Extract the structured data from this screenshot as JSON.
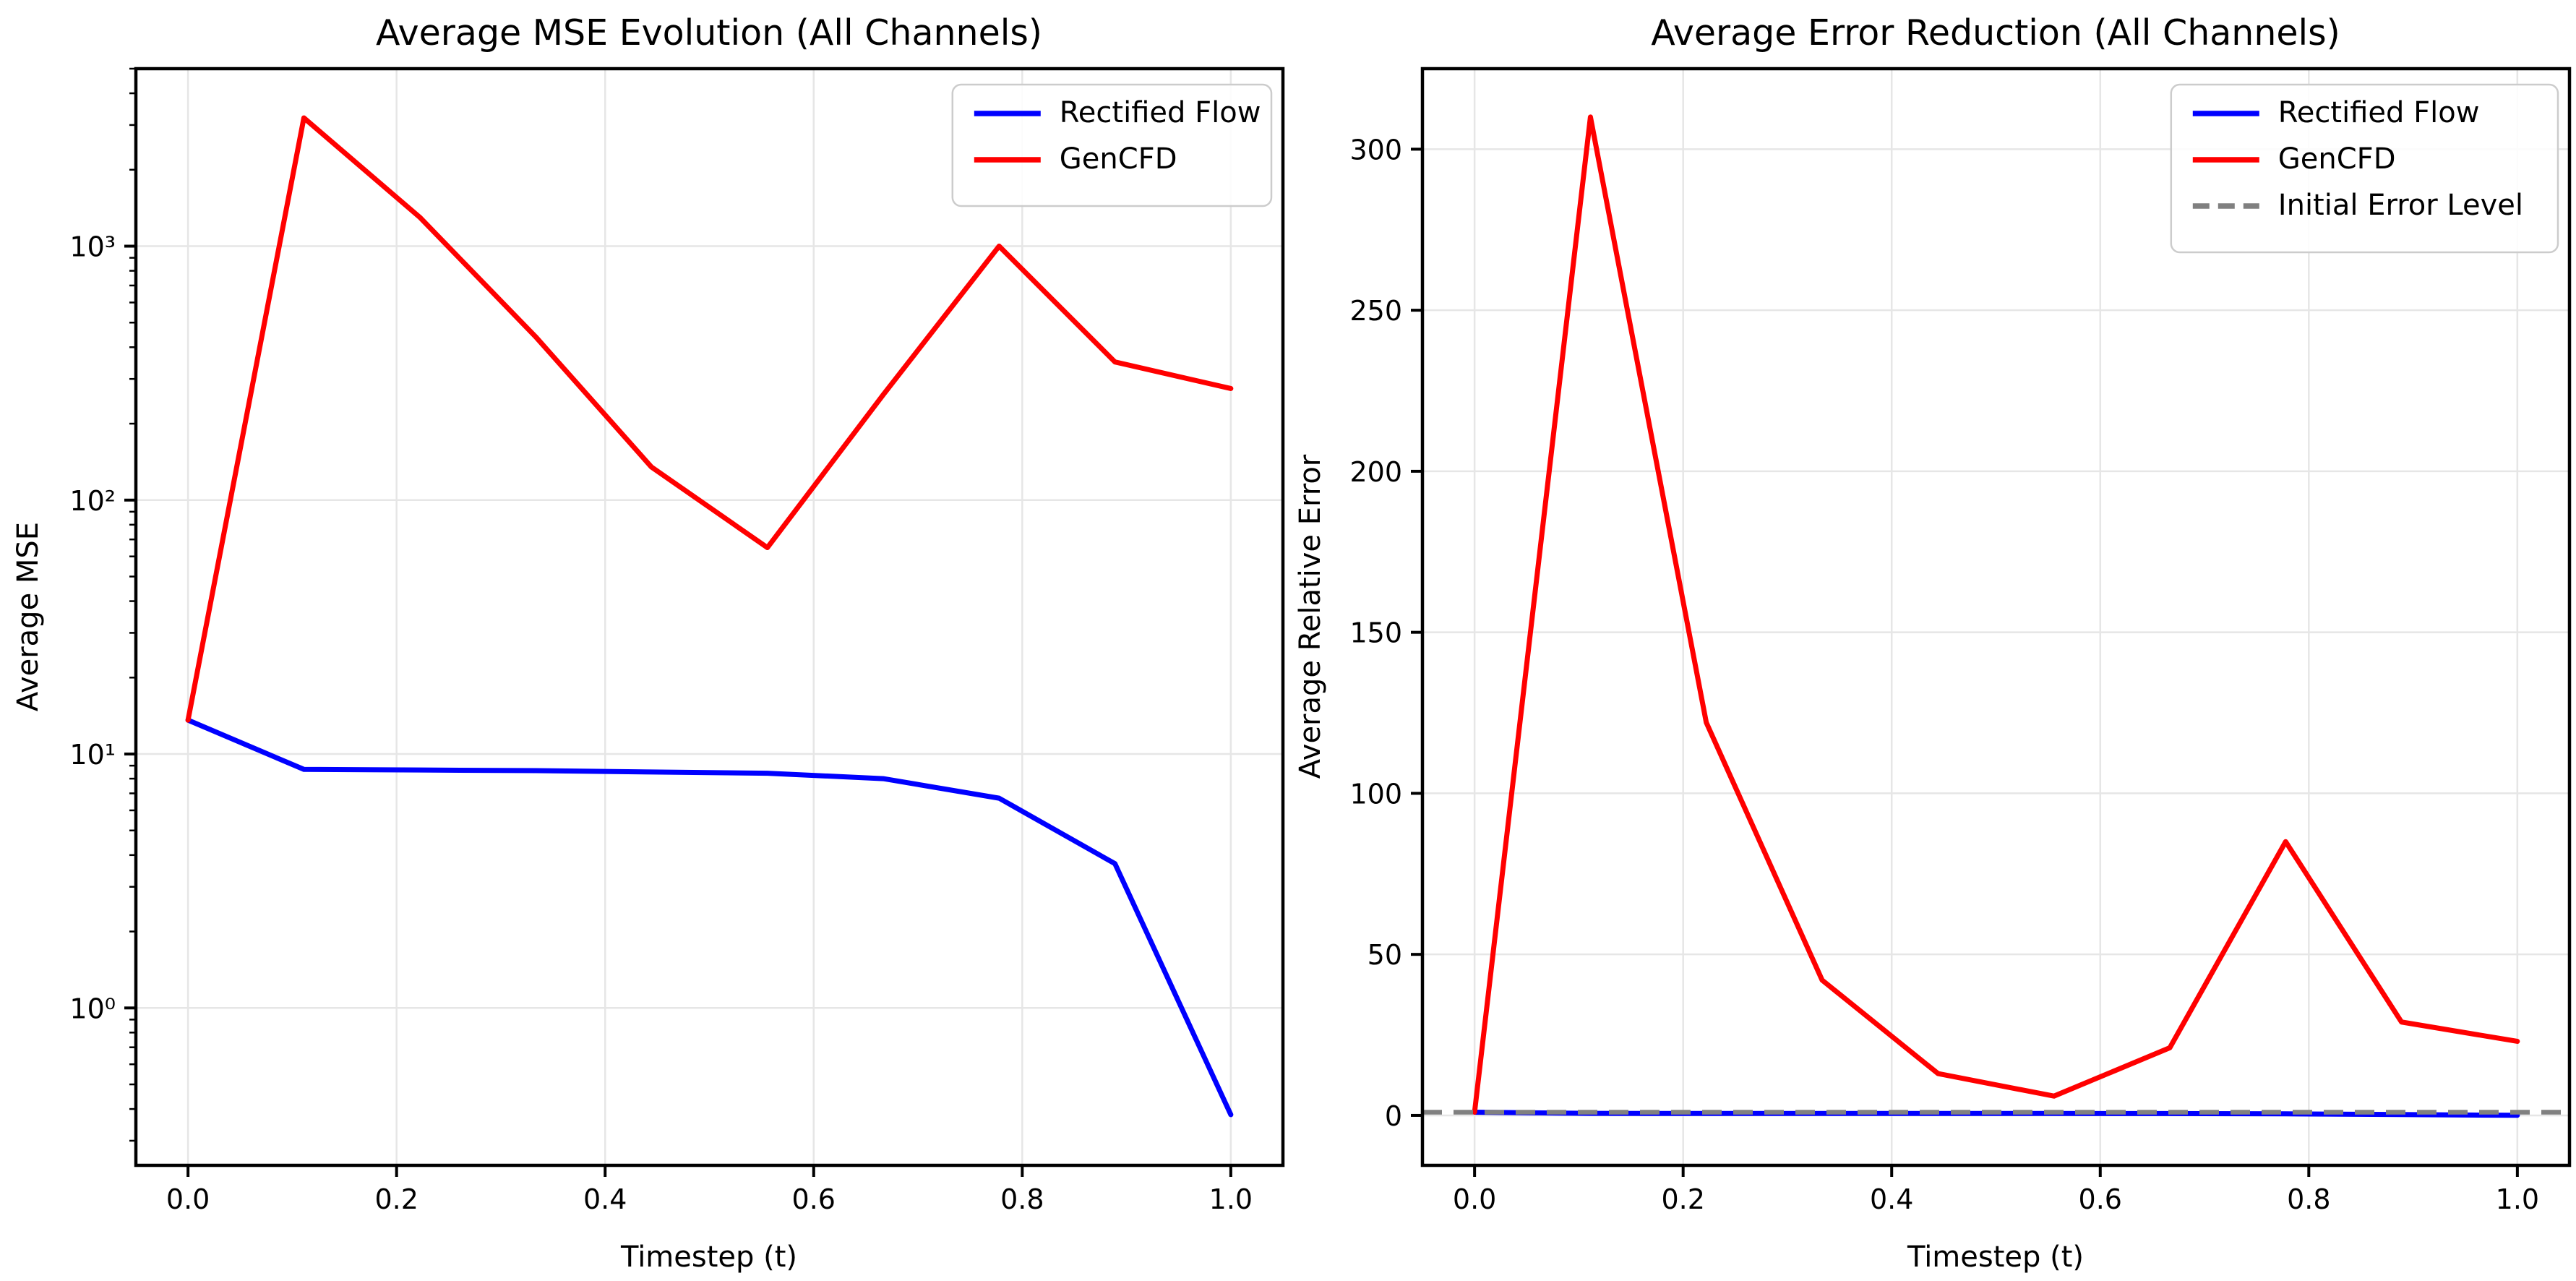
{
  "figure": {
    "background": "#ffffff",
    "text_color": "#000000",
    "grid_color": "#e6e6e6",
    "spine_color": "#000000"
  },
  "chart_data": [
    {
      "type": "line",
      "title": "Average MSE Evolution (All Channels)",
      "xlabel": "Timestep (t)",
      "ylabel": "Average MSE",
      "yscale": "log",
      "xlim": [
        -0.05,
        1.05
      ],
      "ylim": [
        0.24,
        5000
      ],
      "grid": true,
      "legend_position": "upper right",
      "x": [
        0.0,
        0.1111,
        0.2222,
        0.3333,
        0.4444,
        0.5556,
        0.6667,
        0.7778,
        0.8889,
        1.0
      ],
      "series": [
        {
          "name": "Rectified Flow",
          "color": "#0000ff",
          "style": "solid",
          "values": [
            13.6,
            8.7,
            8.65,
            8.6,
            8.5,
            8.4,
            8.0,
            6.7,
            3.7,
            0.38
          ]
        },
        {
          "name": "GenCFD",
          "color": "#ff0000",
          "style": "solid",
          "values": [
            13.6,
            3200,
            1300,
            440,
            135,
            65,
            260,
            1000,
            350,
            275
          ]
        }
      ],
      "xticks": {
        "values": [
          0.0,
          0.2,
          0.4,
          0.6,
          0.8,
          1.0
        ],
        "labels": [
          "0.0",
          "0.2",
          "0.4",
          "0.6",
          "0.8",
          "1.0"
        ]
      },
      "yticks": {
        "values": [
          1,
          10,
          100,
          1000
        ],
        "labels": [
          "10⁰",
          "10¹",
          "10²",
          "10³"
        ]
      }
    },
    {
      "type": "line",
      "title": "Average Error Reduction (All Channels)",
      "xlabel": "Timestep (t)",
      "ylabel": "Average Relative Error",
      "yscale": "linear",
      "xlim": [
        -0.05,
        1.05
      ],
      "ylim": [
        -15.5,
        325
      ],
      "grid": true,
      "legend_position": "upper right",
      "x": [
        0.0,
        0.1111,
        0.2222,
        0.3333,
        0.4444,
        0.5556,
        0.6667,
        0.7778,
        0.8889,
        1.0
      ],
      "series": [
        {
          "name": "Rectified Flow",
          "color": "#0000ff",
          "style": "solid",
          "values": [
            1.0,
            0.62,
            0.61,
            0.61,
            0.61,
            0.6,
            0.57,
            0.48,
            0.26,
            0.03
          ]
        },
        {
          "name": "GenCFD",
          "color": "#ff0000",
          "style": "solid",
          "values": [
            1.0,
            310,
            122,
            42,
            13,
            6,
            21,
            85,
            29,
            23
          ]
        }
      ],
      "baseline": {
        "name": "Initial Error Level",
        "color": "#808080",
        "style": "dashed",
        "value": 1.0
      },
      "xticks": {
        "values": [
          0.0,
          0.2,
          0.4,
          0.6,
          0.8,
          1.0
        ],
        "labels": [
          "0.0",
          "0.2",
          "0.4",
          "0.6",
          "0.8",
          "1.0"
        ]
      },
      "yticks": {
        "values": [
          0,
          50,
          100,
          150,
          200,
          250,
          300
        ],
        "labels": [
          "0",
          "50",
          "100",
          "150",
          "200",
          "250",
          "300"
        ]
      }
    }
  ]
}
